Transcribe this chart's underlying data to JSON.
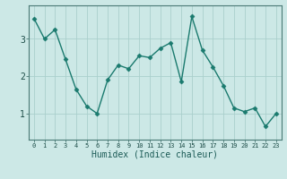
{
  "x": [
    0,
    1,
    2,
    3,
    4,
    5,
    6,
    7,
    8,
    9,
    10,
    11,
    12,
    13,
    14,
    15,
    16,
    17,
    18,
    19,
    20,
    21,
    22,
    23
  ],
  "y": [
    3.55,
    3.0,
    3.25,
    2.45,
    1.65,
    1.2,
    1.0,
    1.9,
    2.3,
    2.2,
    2.55,
    2.5,
    2.75,
    2.9,
    1.85,
    3.6,
    2.7,
    2.25,
    1.75,
    1.15,
    1.05,
    1.15,
    0.65,
    1.0
  ],
  "xlabel": "Humidex (Indice chaleur)",
  "xlim": [
    -0.5,
    23.5
  ],
  "ylim": [
    0.3,
    3.9
  ],
  "yticks": [
    1,
    2,
    3
  ],
  "xticks": [
    0,
    1,
    2,
    3,
    4,
    5,
    6,
    7,
    8,
    9,
    10,
    11,
    12,
    13,
    14,
    15,
    16,
    17,
    18,
    19,
    20,
    21,
    22,
    23
  ],
  "line_color": "#1a7a6e",
  "marker_color": "#1a7a6e",
  "bg_color": "#cce8e6",
  "grid_color": "#aacfcc",
  "axis_color": "#4a7a75",
  "label_color": "#1a5a55",
  "tick_label_color": "#1a4a45"
}
